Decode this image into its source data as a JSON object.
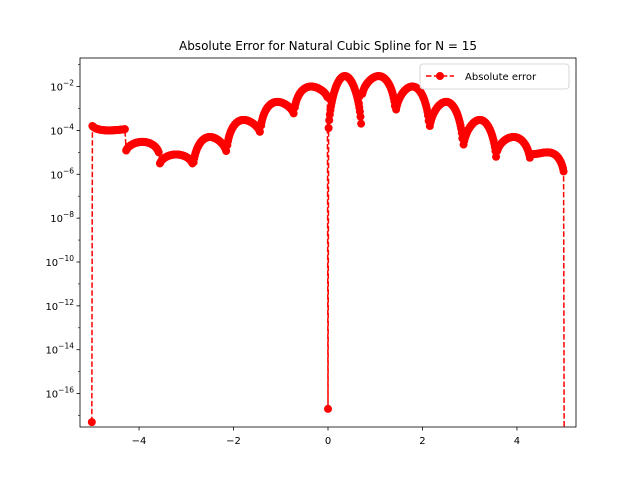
{
  "chart_data": {
    "type": "line",
    "title": "Absolute Error for Natural Cubic Spline for N = 15",
    "xlabel": "",
    "ylabel": "",
    "x_scale": "linear",
    "y_scale": "log",
    "xlim": [
      -5.25,
      5.25
    ],
    "ylim": [
      3e-18,
      0.2
    ],
    "x_ticks": [
      -4,
      -2,
      0,
      2,
      4
    ],
    "x_tick_labels": [
      "−4",
      "−2",
      "0",
      "2",
      "4"
    ],
    "y_ticks": [
      1e-16,
      1e-14,
      1e-12,
      1e-10,
      1e-08,
      1e-06,
      0.0001,
      0.01
    ],
    "y_tick_labels": [
      {
        "base": "10",
        "exp": "−16"
      },
      {
        "base": "10",
        "exp": "−14"
      },
      {
        "base": "10",
        "exp": "−12"
      },
      {
        "base": "10",
        "exp": "−10"
      },
      {
        "base": "10",
        "exp": "−8"
      },
      {
        "base": "10",
        "exp": "−6"
      },
      {
        "base": "10",
        "exp": "−4"
      },
      {
        "base": "10",
        "exp": "−2"
      }
    ],
    "grid": false,
    "legend_position": "top-right",
    "series": [
      {
        "name": "Absolute error",
        "color": "#ff0000",
        "line_style": "dashed",
        "marker": "circle",
        "knots": [
          -5.0,
          -4.286,
          -3.571,
          -2.857,
          -2.143,
          -1.429,
          -0.714,
          0.0,
          0.714,
          1.429,
          2.143,
          2.857,
          3.571,
          4.286,
          5.0
        ],
        "lobe_peaks": [
          0.0001,
          3e-05,
          8e-06,
          5e-05,
          0.0003,
          0.002,
          0.01,
          0.03,
          0.03,
          0.01,
          0.002,
          0.0003,
          5e-05,
          1e-05,
          3e-06
        ],
        "lobe_min_ends": [
          [
            0.0002,
            0.00012
          ],
          [
            8e-06,
            6e-06
          ],
          [
            2e-06,
            2e-06
          ],
          [
            1e-06,
            6e-06
          ],
          [
            6e-06,
            5e-05
          ],
          [
            5e-05,
            0.00035
          ],
          [
            0.0004,
            0.002
          ],
          [
            1e-05,
            2e-05
          ],
          [
            0.002,
            0.0003
          ],
          [
            0.0003,
            5e-05
          ],
          [
            5e-05,
            7e-06
          ],
          [
            7e-06,
            1e-06
          ],
          [
            6e-06,
            2e-06
          ],
          [
            8e-06,
            5e-07
          ],
          [
            2e-06,
            5e-06
          ]
        ],
        "knot_values": [
          {
            "x": -5.0,
            "y": 5e-18
          },
          {
            "x": 0.0,
            "y": 2e-17
          },
          {
            "x": 5.0,
            "y": 0.0
          }
        ]
      }
    ]
  }
}
